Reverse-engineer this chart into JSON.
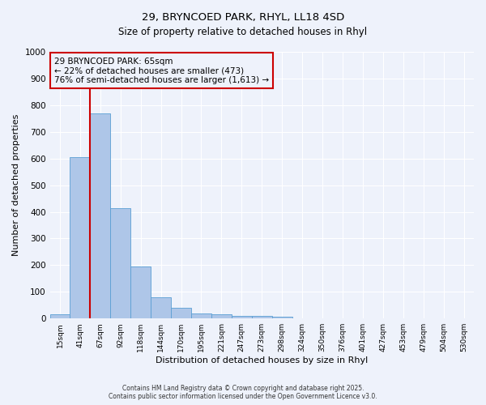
{
  "title_line1": "29, BRYNCOED PARK, RHYL, LL18 4SD",
  "title_line2": "Size of property relative to detached houses in Rhyl",
  "xlabel": "Distribution of detached houses by size in Rhyl",
  "ylabel": "Number of detached properties",
  "bar_color": "#aec6e8",
  "bar_edge_color": "#5a9fd4",
  "categories": [
    "15sqm",
    "41sqm",
    "67sqm",
    "92sqm",
    "118sqm",
    "144sqm",
    "170sqm",
    "195sqm",
    "221sqm",
    "247sqm",
    "273sqm",
    "298sqm",
    "324sqm",
    "350sqm",
    "376sqm",
    "401sqm",
    "427sqm",
    "453sqm",
    "479sqm",
    "504sqm",
    "530sqm"
  ],
  "values": [
    15,
    605,
    770,
    415,
    195,
    80,
    40,
    20,
    15,
    10,
    10,
    8,
    0,
    0,
    0,
    0,
    0,
    0,
    0,
    0,
    0
  ],
  "red_line_index": 1.5,
  "property_size_label": "29 BRYNCOED PARK: 65sqm",
  "annotation_line2": "← 22% of detached houses are smaller (473)",
  "annotation_line3": "76% of semi-detached houses are larger (1,613) →",
  "red_line_color": "#cc0000",
  "ylim": [
    0,
    1000
  ],
  "yticks": [
    0,
    100,
    200,
    300,
    400,
    500,
    600,
    700,
    800,
    900,
    1000
  ],
  "background_color": "#eef2fb",
  "grid_color": "#ffffff",
  "footer_line1": "Contains HM Land Registry data © Crown copyright and database right 2025.",
  "footer_line2": "Contains public sector information licensed under the Open Government Licence v3.0."
}
